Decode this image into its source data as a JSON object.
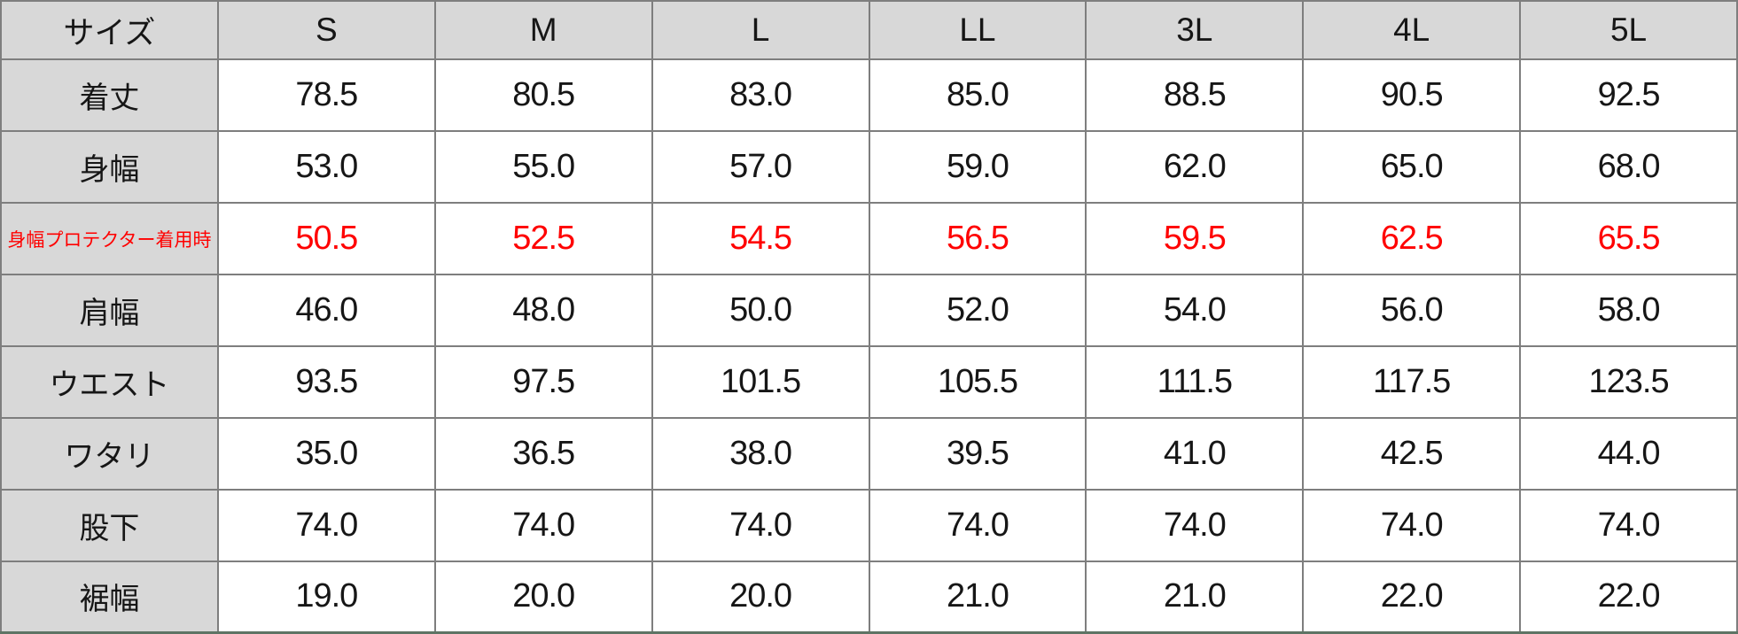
{
  "colors": {
    "header_bg": "#d8d8d8",
    "grid_border": "#7e7e7e",
    "bottom_rule": "#5e7465",
    "highlight_text": "#ff0000",
    "text": "#161616"
  },
  "chart_data": {
    "type": "table",
    "corner_label": "サイズ",
    "columns": [
      "S",
      "M",
      "L",
      "LL",
      "3L",
      "4L",
      "5L"
    ],
    "rows": [
      {
        "label": "着丈",
        "highlight": false,
        "values": [
          "78.5",
          "80.5",
          "83.0",
          "85.0",
          "88.5",
          "90.5",
          "92.5"
        ]
      },
      {
        "label": "身幅",
        "highlight": false,
        "values": [
          "53.0",
          "55.0",
          "57.0",
          "59.0",
          "62.0",
          "65.0",
          "68.0"
        ]
      },
      {
        "label": "身幅プロテクター着用時",
        "highlight": true,
        "values": [
          "50.5",
          "52.5",
          "54.5",
          "56.5",
          "59.5",
          "62.5",
          "65.5"
        ]
      },
      {
        "label": "肩幅",
        "highlight": false,
        "values": [
          "46.0",
          "48.0",
          "50.0",
          "52.0",
          "54.0",
          "56.0",
          "58.0"
        ]
      },
      {
        "label": "ウエスト",
        "highlight": false,
        "values": [
          "93.5",
          "97.5",
          "101.5",
          "105.5",
          "111.5",
          "117.5",
          "123.5"
        ]
      },
      {
        "label": "ワタリ",
        "highlight": false,
        "values": [
          "35.0",
          "36.5",
          "38.0",
          "39.5",
          "41.0",
          "42.5",
          "44.0"
        ]
      },
      {
        "label": "股下",
        "highlight": false,
        "values": [
          "74.0",
          "74.0",
          "74.0",
          "74.0",
          "74.0",
          "74.0",
          "74.0"
        ]
      },
      {
        "label": "裾幅",
        "highlight": false,
        "values": [
          "19.0",
          "20.0",
          "20.0",
          "21.0",
          "21.0",
          "22.0",
          "22.0"
        ]
      }
    ]
  }
}
